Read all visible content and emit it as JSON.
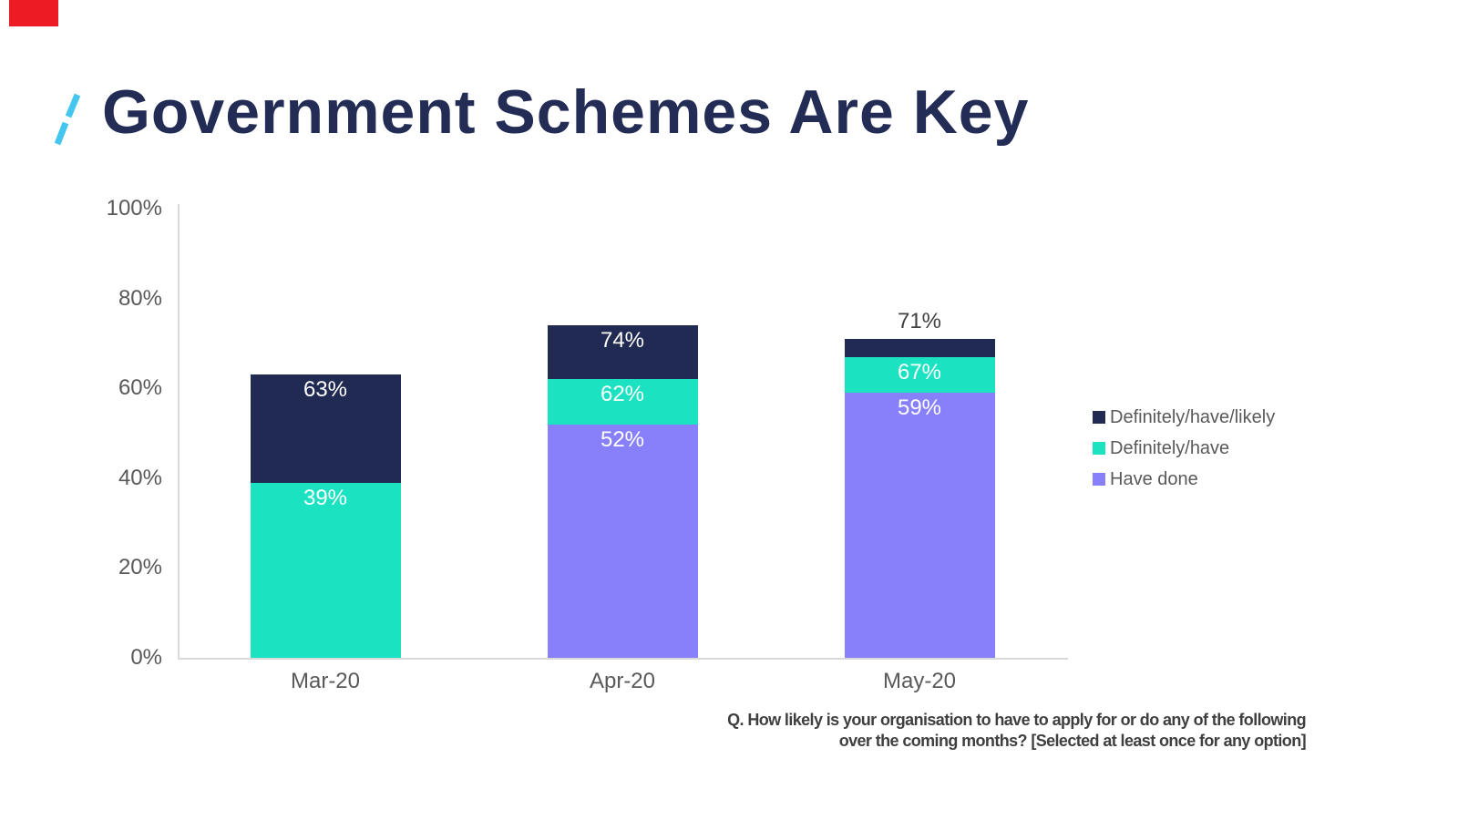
{
  "slide": {
    "title": "Government Schemes Are Key",
    "footnote_line1": "Q. How likely is your organisation to have to apply for or do any of the following",
    "footnote_line2": "over the coming months? [Selected at least once for any option]"
  },
  "colors": {
    "title": "#222c55",
    "slash": "#45c6f0",
    "red_mark": "#ed1c24",
    "navy": "#212a52",
    "teal": "#1be3c1",
    "purple": "#8780fa",
    "axis_text": "#595959",
    "axis_line": "#d9d9d9",
    "outside_label": "#404040",
    "inside_label": "#ffffff",
    "footnote_text": "#3f3f3f"
  },
  "chart_data": {
    "type": "bar",
    "subtype": "stacked-cumulative-percent",
    "title": "Government Schemes Are Key",
    "categories": [
      "Mar-20",
      "Apr-20",
      "May-20"
    ],
    "series": [
      {
        "name": "Definitely/have/likely",
        "color_key": "navy",
        "cumulative_values": [
          63,
          74,
          71
        ]
      },
      {
        "name": "Definitely/have",
        "color_key": "teal",
        "cumulative_values": [
          39,
          62,
          67
        ]
      },
      {
        "name": "Have done",
        "color_key": "purple",
        "cumulative_values": [
          null,
          52,
          59
        ]
      }
    ],
    "y_ticks": [
      {
        "value": 100,
        "label": "100%"
      },
      {
        "value": 80,
        "label": "80%"
      },
      {
        "value": 60,
        "label": "60%"
      },
      {
        "value": 40,
        "label": "40%"
      },
      {
        "value": 20,
        "label": "20%"
      },
      {
        "value": 0,
        "label": "0%"
      }
    ],
    "ylim": [
      0,
      100
    ],
    "grid": false,
    "legend_position": "right",
    "value_label_suffix": "%"
  },
  "legend": {
    "items": [
      {
        "label": "Definitely/have/likely",
        "color_key": "navy"
      },
      {
        "label": "Definitely/have",
        "color_key": "teal"
      },
      {
        "label": "Have done",
        "color_key": "purple"
      }
    ]
  }
}
